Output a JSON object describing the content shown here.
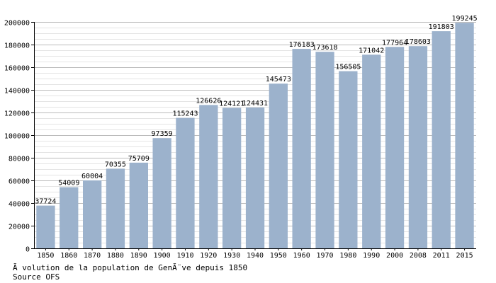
{
  "chart_data": {
    "type": "bar",
    "categories": [
      "1850",
      "1860",
      "1870",
      "1880",
      "1890",
      "1900",
      "1910",
      "1920",
      "1930",
      "1940",
      "1950",
      "1960",
      "1970",
      "1980",
      "1990",
      "2000",
      "2008",
      "2011",
      "2015"
    ],
    "values": [
      37724,
      54009,
      60004,
      70355,
      75709,
      97359,
      115243,
      126626,
      124121,
      124431,
      145473,
      176183,
      173618,
      156505,
      171042,
      177964,
      178603,
      191803,
      199245
    ],
    "data_labels": [
      "37724",
      "54009",
      "60004",
      "70355",
      "75709",
      "97359",
      "115243",
      "126626",
      "124121",
      "124431",
      "145473",
      "176183",
      "173618",
      "156505",
      "171042",
      "177964",
      "178603",
      "191803",
      "199245"
    ],
    "yticks": [
      0,
      20000,
      40000,
      60000,
      80000,
      100000,
      120000,
      140000,
      160000,
      180000,
      200000
    ],
    "ytick_labels": [
      "0",
      "20000",
      "40000",
      "60000",
      "80000",
      "100000",
      "120000",
      "140000",
      "160000",
      "180000",
      "200000"
    ],
    "ylim": [
      0,
      200000
    ],
    "minor_step": 5000,
    "grid": true,
    "colors": {
      "bar": "#9cb2cc",
      "grid_major": "#bbbbbb",
      "grid_minor": "#e4e4e4",
      "axis": "#000000"
    },
    "title": "",
    "xlabel": "",
    "ylabel": ""
  },
  "caption": {
    "line1": "Ã volution de la population de GenÃ¨ve depuis 1850",
    "line2": "Source OFS"
  }
}
